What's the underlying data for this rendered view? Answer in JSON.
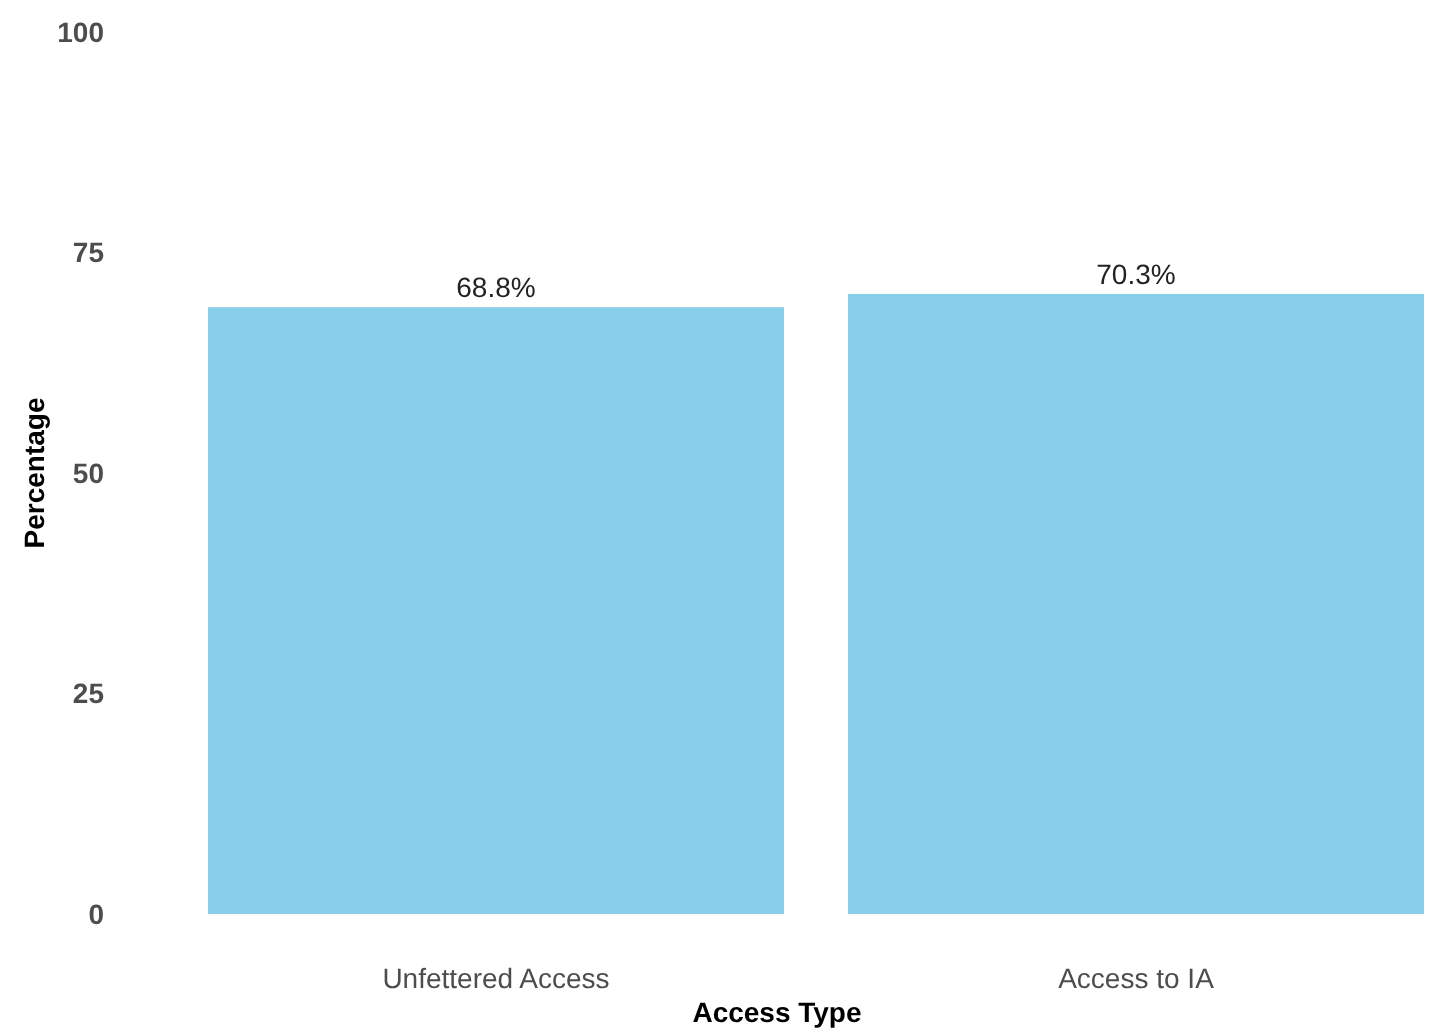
{
  "chart_data": {
    "type": "bar",
    "xlabel": "Access Type",
    "ylabel": "Percentage",
    "categories": [
      "Unfettered Access",
      "Access to IA"
    ],
    "values": [
      68.8,
      70.3
    ],
    "color": "#87ceeb",
    "value_labels": [
      "68.8%",
      "70.3%"
    ],
    "ylim": [
      0,
      100
    ],
    "yticks": [
      0,
      25,
      50,
      75,
      100
    ],
    "grid": false
  }
}
